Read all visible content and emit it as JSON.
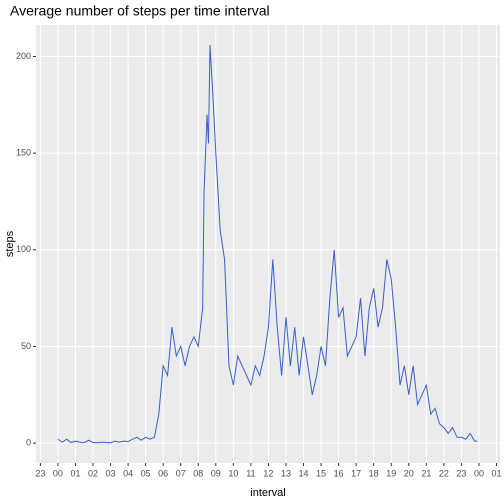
{
  "chart_data": {
    "type": "line",
    "title": "Average number of steps per time interval",
    "x_label": "interval",
    "y_label": "steps",
    "x": [
      0,
      0.25,
      0.5,
      0.75,
      1,
      1.25,
      1.5,
      1.75,
      2,
      2.25,
      2.5,
      2.75,
      3,
      3.25,
      3.5,
      3.75,
      4,
      4.25,
      4.5,
      4.75,
      5,
      5.25,
      5.5,
      5.75,
      6,
      6.25,
      6.5,
      6.75,
      7,
      7.25,
      7.5,
      7.75,
      8,
      8.25,
      8.33,
      8.5,
      8.58,
      8.67,
      8.83,
      9,
      9.25,
      9.5,
      9.75,
      10,
      10.25,
      10.5,
      10.75,
      11,
      11.25,
      11.5,
      11.75,
      12,
      12.25,
      12.5,
      12.75,
      13,
      13.25,
      13.5,
      13.75,
      14,
      14.25,
      14.5,
      14.75,
      15,
      15.25,
      15.5,
      15.75,
      16,
      16.25,
      16.5,
      16.75,
      17,
      17.25,
      17.5,
      17.75,
      18,
      18.25,
      18.5,
      18.75,
      19,
      19.25,
      19.5,
      19.75,
      20,
      20.25,
      20.5,
      20.75,
      21,
      21.25,
      21.5,
      21.75,
      22,
      22.25,
      22.5,
      22.75,
      23,
      23.25,
      23.5,
      23.75,
      23.92
    ],
    "series": [
      {
        "name": "steps",
        "color": "#3a5fcd",
        "values": [
          2,
          0.5,
          2,
          0.3,
          1,
          0.5,
          0.2,
          1.5,
          0.3,
          0.2,
          0.5,
          0.3,
          0.2,
          1,
          0.5,
          1,
          0.8,
          2,
          3,
          1.5,
          3,
          2,
          3,
          15,
          40,
          35,
          60,
          45,
          50,
          40,
          50,
          55,
          50,
          70,
          130,
          170,
          155,
          206,
          180,
          150,
          110,
          95,
          40,
          30,
          45,
          40,
          35,
          30,
          40,
          35,
          45,
          60,
          95,
          60,
          35,
          65,
          40,
          60,
          35,
          55,
          40,
          25,
          35,
          50,
          40,
          75,
          100,
          65,
          70,
          45,
          50,
          55,
          75,
          45,
          70,
          80,
          60,
          70,
          95,
          85,
          60,
          30,
          40,
          25,
          40,
          20,
          25,
          30,
          15,
          18,
          10,
          8,
          5,
          8,
          3,
          3,
          2,
          5,
          1,
          1
        ]
      }
    ],
    "xlim": [
      -1.25,
      25.2
    ],
    "xticks": [
      {
        "value": -1,
        "label": "23"
      },
      {
        "value": 0,
        "label": "00"
      },
      {
        "value": 1,
        "label": "01"
      },
      {
        "value": 2,
        "label": "02"
      },
      {
        "value": 3,
        "label": "03"
      },
      {
        "value": 4,
        "label": "04"
      },
      {
        "value": 5,
        "label": "05"
      },
      {
        "value": 6,
        "label": "06"
      },
      {
        "value": 7,
        "label": "07"
      },
      {
        "value": 8,
        "label": "08"
      },
      {
        "value": 9,
        "label": "09"
      },
      {
        "value": 10,
        "label": "10"
      },
      {
        "value": 11,
        "label": "11"
      },
      {
        "value": 12,
        "label": "12"
      },
      {
        "value": 13,
        "label": "13"
      },
      {
        "value": 14,
        "label": "14"
      },
      {
        "value": 15,
        "label": "15"
      },
      {
        "value": 16,
        "label": "16"
      },
      {
        "value": 17,
        "label": "17"
      },
      {
        "value": 18,
        "label": "18"
      },
      {
        "value": 19,
        "label": "19"
      },
      {
        "value": 20,
        "label": "20"
      },
      {
        "value": 21,
        "label": "21"
      },
      {
        "value": 22,
        "label": "22"
      },
      {
        "value": 23,
        "label": "23"
      },
      {
        "value": 24,
        "label": "00"
      },
      {
        "value": 25,
        "label": "01"
      }
    ],
    "ylim": [
      -10.3,
      216.3
    ],
    "yticks": [
      0,
      50,
      100,
      150,
      200
    ],
    "grid": true
  }
}
